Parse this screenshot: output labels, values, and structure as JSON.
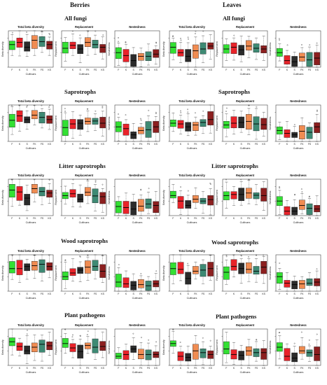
{
  "columns": [
    "Berries",
    "Leaves"
  ],
  "groups": [
    "All fungi",
    "Saprotrophs",
    "Litter saprotrophs",
    "Wood saprotrophs",
    "Plant pathogens"
  ],
  "panel_titles": [
    "Total beta diversity",
    "Replacement",
    "Nestedness"
  ],
  "y_labels": [
    "Beta diversity",
    "Replacement",
    "Nestedness"
  ],
  "xlabel": "Cultivars",
  "cultivars": [
    "F",
    "K",
    "S",
    "FK",
    "FS",
    "KS"
  ],
  "colors": {
    "F": "#33e033",
    "K": "#e8232a",
    "S": "#2b2b2b",
    "FK": "#f08c52",
    "FS": "#3e8a74",
    "KS": "#8c1f1f"
  },
  "chart_data": {
    "type": "boxplot",
    "ylim": [
      0,
      1
    ],
    "panels": [
      {
        "column": "Berries",
        "group": "All fungi",
        "metric": "Total beta diversity",
        "median": [
          0.62,
          0.68,
          0.55,
          0.74,
          0.7,
          0.62
        ]
      },
      {
        "column": "Berries",
        "group": "All fungi",
        "metric": "Replacement",
        "median": [
          0.52,
          0.6,
          0.5,
          0.68,
          0.62,
          0.55
        ]
      },
      {
        "column": "Berries",
        "group": "All fungi",
        "metric": "Nestedness",
        "median": [
          0.4,
          0.32,
          0.18,
          0.3,
          0.3,
          0.36
        ]
      },
      {
        "column": "Leaves",
        "group": "All fungi",
        "metric": "Total beta diversity",
        "median": [
          0.55,
          0.4,
          0.3,
          0.45,
          0.5,
          0.58
        ]
      },
      {
        "column": "Leaves",
        "group": "All fungi",
        "metric": "Replacement",
        "median": [
          0.5,
          0.55,
          0.48,
          0.58,
          0.52,
          0.5
        ]
      },
      {
        "column": "Leaves",
        "group": "All fungi",
        "metric": "Nestedness",
        "median": [
          0.4,
          0.18,
          0.15,
          0.28,
          0.2,
          0.25
        ]
      },
      {
        "column": "Berries",
        "group": "Saprotrophs",
        "metric": "Total beta diversity",
        "median": [
          0.58,
          0.7,
          0.6,
          0.72,
          0.66,
          0.6
        ]
      },
      {
        "column": "Berries",
        "group": "Saprotrophs",
        "metric": "Replacement",
        "median": [
          0.38,
          0.48,
          0.5,
          0.55,
          0.56,
          0.5
        ]
      },
      {
        "column": "Berries",
        "group": "Saprotrophs",
        "metric": "Nestedness",
        "median": [
          0.4,
          0.35,
          0.18,
          0.3,
          0.32,
          0.4
        ]
      },
      {
        "column": "Leaves",
        "group": "Saprotrophs",
        "metric": "Total beta diversity",
        "median": [
          0.5,
          0.48,
          0.4,
          0.45,
          0.52,
          0.6
        ]
      },
      {
        "column": "Leaves",
        "group": "Saprotrophs",
        "metric": "Replacement",
        "median": [
          0.45,
          0.5,
          0.52,
          0.55,
          0.48,
          0.46
        ]
      },
      {
        "column": "Leaves",
        "group": "Saprotrophs",
        "metric": "Nestedness",
        "median": [
          0.3,
          0.22,
          0.18,
          0.28,
          0.25,
          0.4
        ]
      },
      {
        "column": "Berries",
        "group": "Litter saprotrophs",
        "metric": "Total beta diversity",
        "median": [
          0.7,
          0.65,
          0.48,
          0.74,
          0.66,
          0.62
        ]
      },
      {
        "column": "Berries",
        "group": "Litter saprotrophs",
        "metric": "Replacement",
        "median": [
          0.55,
          0.6,
          0.45,
          0.64,
          0.54,
          0.52
        ]
      },
      {
        "column": "Berries",
        "group": "Litter saprotrophs",
        "metric": "Nestedness",
        "median": [
          0.25,
          0.22,
          0.18,
          0.26,
          0.32,
          0.28
        ]
      },
      {
        "column": "Leaves",
        "group": "Litter saprotrophs",
        "metric": "Total beta diversity",
        "median": [
          0.55,
          0.4,
          0.28,
          0.45,
          0.4,
          0.44
        ]
      },
      {
        "column": "Leaves",
        "group": "Litter saprotrophs",
        "metric": "Replacement",
        "median": [
          0.55,
          0.58,
          0.58,
          0.62,
          0.56,
          0.55
        ]
      },
      {
        "column": "Leaves",
        "group": "Litter saprotrophs",
        "metric": "Nestedness",
        "median": [
          0.4,
          0.12,
          0.12,
          0.28,
          0.2,
          0.18
        ]
      },
      {
        "column": "Berries",
        "group": "Wood saprotrophs",
        "metric": "Total beta diversity",
        "median": [
          0.62,
          0.62,
          0.68,
          0.7,
          0.74,
          0.68
        ]
      },
      {
        "column": "Berries",
        "group": "Wood saprotrophs",
        "metric": "Replacement",
        "median": [
          0.4,
          0.5,
          0.58,
          0.66,
          0.68,
          0.55
        ]
      },
      {
        "column": "Berries",
        "group": "Wood saprotrophs",
        "metric": "Nestedness",
        "median": [
          0.25,
          0.2,
          0.16,
          0.18,
          0.15,
          0.2
        ]
      },
      {
        "column": "Leaves",
        "group": "Wood saprotrophs",
        "metric": "Total beta diversity",
        "median": [
          0.62,
          0.6,
          0.35,
          0.55,
          0.58,
          0.62
        ]
      },
      {
        "column": "Leaves",
        "group": "Wood saprotrophs",
        "metric": "Replacement",
        "median": [
          0.52,
          0.68,
          0.62,
          0.6,
          0.55,
          0.66
        ]
      },
      {
        "column": "Leaves",
        "group": "Wood saprotrophs",
        "metric": "Nestedness",
        "median": [
          0.4,
          0.22,
          0.18,
          0.2,
          0.22,
          0.25
        ]
      },
      {
        "column": "Berries",
        "group": "Plant pathogens",
        "metric": "Total beta diversity",
        "median": [
          0.65,
          0.52,
          0.4,
          0.5,
          0.58,
          0.54
        ]
      },
      {
        "column": "Berries",
        "group": "Plant pathogens",
        "metric": "Replacement",
        "median": [
          0.6,
          0.48,
          0.38,
          0.55,
          0.5,
          0.52
        ]
      },
      {
        "column": "Berries",
        "group": "Plant pathogens",
        "metric": "Nestedness",
        "median": [
          0.25,
          0.3,
          0.45,
          0.3,
          0.3,
          0.3
        ]
      },
      {
        "column": "Leaves",
        "group": "Plant pathogens",
        "metric": "Total beta diversity",
        "median": [
          0.6,
          0.25,
          0.22,
          0.4,
          0.35,
          0.3
        ]
      },
      {
        "column": "Leaves",
        "group": "Plant pathogens",
        "metric": "Replacement",
        "median": [
          0.45,
          0.3,
          0.28,
          0.4,
          0.35,
          0.35
        ]
      },
      {
        "column": "Leaves",
        "group": "Plant pathogens",
        "metric": "Nestedness",
        "median": [
          0.5,
          0.25,
          0.2,
          0.4,
          0.35,
          0.3
        ]
      }
    ]
  }
}
